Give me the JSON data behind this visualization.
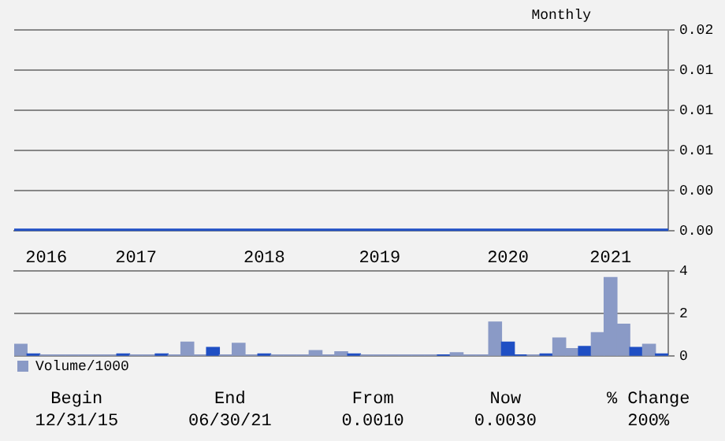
{
  "chart_data": [
    {
      "type": "line",
      "categories": [
        null,
        null,
        null,
        null,
        null,
        null,
        null,
        null,
        null,
        null,
        null,
        null,
        null,
        null,
        null,
        null,
        null,
        null,
        null,
        null,
        null,
        null,
        null,
        null,
        null,
        null,
        null,
        null,
        null,
        null,
        null,
        null,
        null,
        null,
        null,
        null,
        null,
        null,
        null,
        null,
        null,
        null,
        null,
        null,
        null,
        null,
        null,
        null,
        null,
        null,
        null
      ],
      "series": [
        {
          "color": "#1f4fc4",
          "values": [
            0,
            0,
            0,
            0,
            0,
            0,
            0,
            0,
            0,
            0,
            0,
            0,
            0,
            0,
            0,
            0,
            0,
            0,
            0,
            0,
            0,
            0,
            0,
            0,
            0,
            0,
            0,
            0,
            0,
            0,
            0,
            0,
            0,
            0,
            0,
            0,
            0,
            0,
            0,
            0,
            0,
            0,
            0,
            0,
            0,
            0,
            0,
            0,
            0,
            0,
            0
          ]
        }
      ],
      "ylim": [
        0,
        0.015
      ],
      "yticks": [
        {
          "value": 0,
          "label": "0.00"
        },
        {
          "value": 0.003,
          "label": "0.00"
        },
        {
          "value": 0.006,
          "label": "0.01"
        },
        {
          "value": 0.009,
          "label": "0.01"
        },
        {
          "value": 0.012,
          "label": "0.01"
        },
        {
          "value": 0.015,
          "label": "0.02"
        }
      ],
      "grid": "y",
      "legend": false,
      "tick_labels": "y",
      "marker": "none",
      "annotations": [
        "Monthly"
      ]
    },
    {
      "type": "bar",
      "categories": [
        null,
        null,
        "2016",
        null,
        null,
        null,
        null,
        null,
        null,
        "2017",
        null,
        null,
        null,
        null,
        null,
        null,
        null,
        null,
        null,
        "2018",
        null,
        null,
        null,
        null,
        null,
        null,
        null,
        null,
        "2019",
        null,
        null,
        null,
        null,
        null,
        null,
        null,
        null,
        null,
        "2020",
        null,
        null,
        null,
        null,
        null,
        null,
        null,
        "2021",
        null,
        null,
        null,
        null
      ],
      "series": [
        {
          "name": "Volume/1000",
          "color": "#8a9ac6",
          "colors": [
            "#8a9ac6",
            "#1f4fc4",
            "#8a9ac6",
            "#8a9ac6",
            "#8a9ac6",
            "#8a9ac6",
            "#8a9ac6",
            "#8a9ac6",
            "#1f4fc4",
            "#8a9ac6",
            "#8a9ac6",
            "#1f4fc4",
            "#8a9ac6",
            "#8a9ac6",
            "#8a9ac6",
            "#1f4fc4",
            "#8a9ac6",
            "#8a9ac6",
            "#8a9ac6",
            "#1f4fc4",
            "#8a9ac6",
            "#8a9ac6",
            "#8a9ac6",
            "#8a9ac6",
            "#8a9ac6",
            "#8a9ac6",
            "#1f4fc4",
            "#8a9ac6",
            "#8a9ac6",
            "#8a9ac6",
            "#8a9ac6",
            "#8a9ac6",
            "#8a9ac6",
            "#1f4fc4",
            "#8a9ac6",
            "#8a9ac6",
            "#8a9ac6",
            "#8a9ac6",
            "#1f4fc4",
            "#1f4fc4",
            "#8a9ac6",
            "#1f4fc4",
            "#8a9ac6",
            "#8a9ac6",
            "#1f4fc4",
            "#8a9ac6",
            "#8a9ac6",
            "#8a9ac6",
            "#1f4fc4",
            "#8a9ac6",
            "#1f4fc4"
          ],
          "values": [
            0.55,
            0.1,
            0.05,
            0.05,
            0.05,
            0.05,
            0.05,
            0.05,
            0.1,
            0.05,
            0.05,
            0.1,
            0.05,
            0.65,
            0.05,
            0.4,
            0.05,
            0.6,
            0.05,
            0.1,
            0.05,
            0.05,
            0.05,
            0.25,
            0.05,
            0.2,
            0.1,
            0.05,
            0.05,
            0.05,
            0.05,
            0.05,
            0.05,
            0.05,
            0.15,
            0.05,
            0.05,
            1.6,
            0.65,
            0.05,
            0.05,
            0.1,
            0.85,
            0.35,
            0.45,
            1.1,
            3.7,
            1.5,
            0.4,
            0.55,
            0.1
          ]
        }
      ],
      "ylim": [
        0,
        4
      ],
      "yticks": [
        0,
        2,
        4
      ],
      "grid": "y",
      "legend": "bottom left",
      "annotations": [
        "Begin\n12/31/15",
        "End\n06/30/21",
        "From\n0.0010",
        "Now\n0.0030",
        "% Change\n200%"
      ]
    }
  ]
}
